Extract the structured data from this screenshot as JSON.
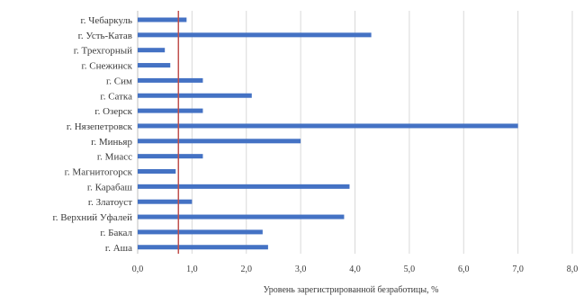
{
  "chart_data": {
    "type": "bar",
    "orientation": "horizontal",
    "categories": [
      "г. Чебаркуль",
      "г. Усть-Катав",
      "г. Трехгорный",
      "г. Снежинск",
      "г. Сим",
      "г. Сатка",
      "г. Озерск",
      "г. Нязепетровск",
      "г. Миньяр",
      "г. Миасс",
      "г. Магнитогорск",
      "г. Карабаш",
      "г. Златоуст",
      "г. Верхний Уфалей",
      "г. Бакал",
      "г. Аша"
    ],
    "values": [
      0.9,
      4.3,
      0.5,
      0.6,
      1.2,
      2.1,
      1.2,
      7.0,
      3.0,
      1.2,
      0.7,
      3.9,
      1.0,
      3.8,
      2.3,
      2.4
    ],
    "reference_line": 0.75,
    "xlabel": "Уровень зарегистрированной безработицы, %",
    "xticks": [
      "0,0",
      "1,0",
      "2,0",
      "3,0",
      "4,0",
      "5,0",
      "6,0",
      "7,0",
      "8,0"
    ],
    "xlim": [
      0,
      8
    ],
    "grid": true,
    "colors": {
      "bar": "#4472c4",
      "reference_line": "#c0504d",
      "grid": "#d9d9d9"
    }
  }
}
